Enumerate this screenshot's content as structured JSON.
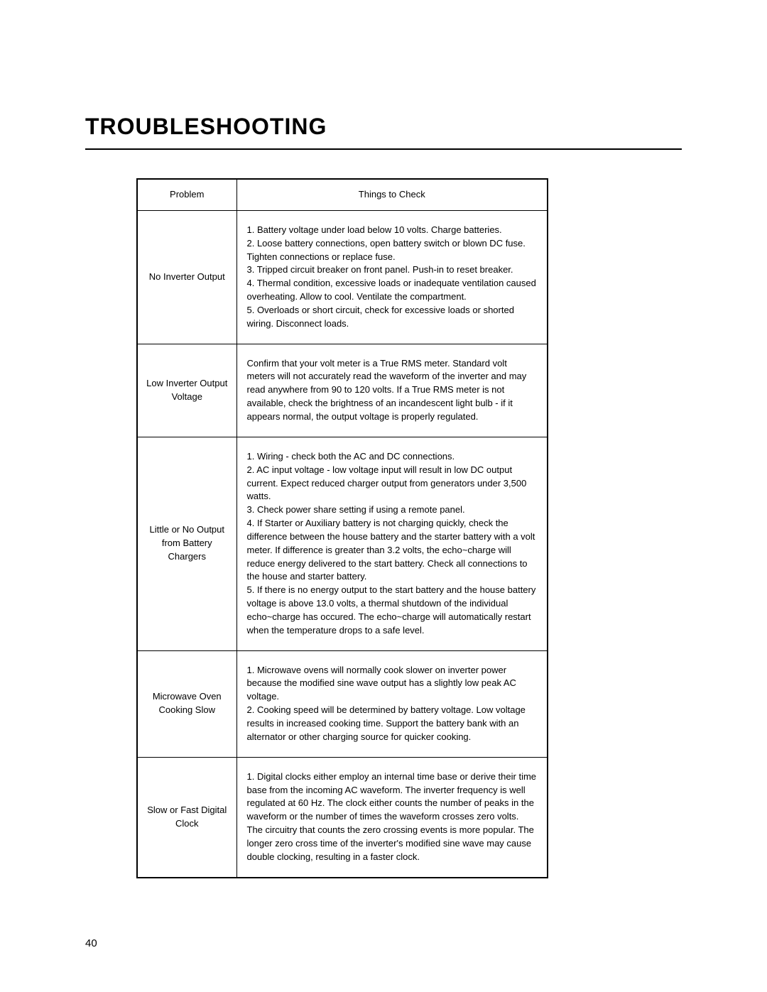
{
  "title": "TROUBLESHOOTING",
  "headers": {
    "problem": "Problem",
    "check": "Things to Check"
  },
  "rows": [
    {
      "problem": "No Inverter Output",
      "check": "1. Battery voltage under load below 10 volts. Charge batteries.\n2. Loose battery connections, open battery switch or blown DC fuse. Tighten connections or replace fuse.\n3. Tripped circuit breaker on front panel. Push-in to reset breaker.\n4. Thermal condition, excessive loads or inadequate ventilation caused overheating.  Allow to cool. Ventilate the compartment.\n5. Overloads or short circuit, check for excessive loads or shorted wiring. Disconnect loads."
    },
    {
      "problem": "Low Inverter Output Voltage",
      "check": "Confirm that your volt meter is a True RMS meter.  Standard volt meters will not accurately read the waveform of the inverter and may read anywhere from 90 to 120 volts.  If a True RMS meter is not available, check the brightness of an incandescent light bulb - if it appears normal, the output voltage is properly regulated."
    },
    {
      "problem": "Little or No Output from Battery Chargers",
      "check": "1. Wiring - check both the AC and DC connections.\n2. AC input voltage - low voltage input will result in low DC output current. Expect reduced charger output from generators under 3,500 watts.\n3. Check power share setting if using a remote panel.\n4. If Starter or Auxiliary battery is not charging quickly, check the difference between the house battery and the starter battery with a volt meter. If difference is greater than 3.2 volts, the echo~charge will reduce energy delivered to the start battery. Check all connections to the house and starter battery.\n5. If there is no energy output to the start battery and the house battery voltage is above 13.0 volts, a thermal shutdown of the individual echo~charge has occured. The echo~charge will automatically restart when the temperature drops to a safe level."
    },
    {
      "problem": "Microwave Oven Cooking Slow",
      "check": "1. Microwave ovens will normally cook slower on inverter power because the modified sine wave output has a slightly low peak AC voltage.\n2. Cooking speed will be determined by battery voltage.  Low voltage results in increased cooking time.  Support the battery bank with an alternator or other charging source for quicker cooking."
    },
    {
      "problem": "Slow or Fast Digital Clock",
      "check": "1.  Digital clocks either employ an internal time base or derive their time base from the incoming AC waveform. The inverter frequency is well regulated at 60 Hz.  The clock either counts the number of peaks in the waveform or the number of times the waveform crosses zero volts.  The circuitry that counts the zero crossing events is more popular.  The longer zero cross time of the inverter's modified sine wave may cause double clocking, resulting in a faster clock."
    }
  ],
  "page_number": "40",
  "style": {
    "title_fontsize": 32,
    "body_fontsize": 13,
    "border_color": "#000000",
    "background_color": "#ffffff",
    "text_color": "#000000"
  }
}
